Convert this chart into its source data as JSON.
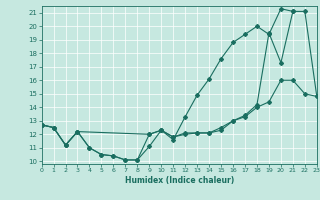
{
  "xlabel": "Humidex (Indice chaleur)",
  "ylabel": "",
  "bg_color": "#c6e8e0",
  "line_color": "#1a6e60",
  "xlim": [
    0,
    23
  ],
  "ylim": [
    9.8,
    21.5
  ],
  "xticks": [
    0,
    1,
    2,
    3,
    4,
    5,
    6,
    7,
    8,
    9,
    10,
    11,
    12,
    13,
    14,
    15,
    16,
    17,
    18,
    19,
    20,
    21,
    22,
    23
  ],
  "yticks": [
    10,
    11,
    12,
    13,
    14,
    15,
    16,
    17,
    18,
    19,
    20,
    21
  ],
  "line1_x": [
    0,
    1,
    2,
    3,
    4,
    5,
    6,
    7,
    8,
    9,
    10,
    11,
    12,
    13,
    14,
    15,
    16,
    17,
    18,
    19,
    20,
    21
  ],
  "line1_y": [
    12.7,
    12.5,
    11.2,
    12.2,
    11.0,
    10.5,
    10.4,
    10.1,
    10.1,
    11.1,
    12.3,
    11.6,
    13.3,
    14.9,
    16.1,
    17.6,
    18.8,
    19.4,
    20.0,
    19.4,
    21.3,
    21.1
  ],
  "line2_x": [
    0,
    1,
    2,
    3,
    4,
    5,
    6,
    7,
    8,
    9,
    10,
    11,
    12,
    13,
    14,
    15,
    16,
    17,
    18,
    19,
    20,
    21,
    22,
    23
  ],
  "line2_y": [
    12.7,
    12.5,
    11.2,
    12.2,
    11.0,
    10.5,
    10.4,
    10.1,
    10.1,
    12.0,
    12.3,
    11.8,
    12.1,
    12.1,
    12.1,
    12.5,
    13.0,
    13.4,
    14.2,
    19.5,
    17.3,
    21.1,
    21.1,
    14.8
  ],
  "line3_x": [
    0,
    1,
    2,
    3,
    9,
    10,
    11,
    12,
    13,
    14,
    15,
    16,
    17,
    18,
    19,
    20,
    21,
    22,
    23
  ],
  "line3_y": [
    12.7,
    12.5,
    11.2,
    12.2,
    12.0,
    12.3,
    11.8,
    12.0,
    12.1,
    12.1,
    12.3,
    13.0,
    13.3,
    14.0,
    14.4,
    16.0,
    16.0,
    15.0,
    14.8
  ]
}
